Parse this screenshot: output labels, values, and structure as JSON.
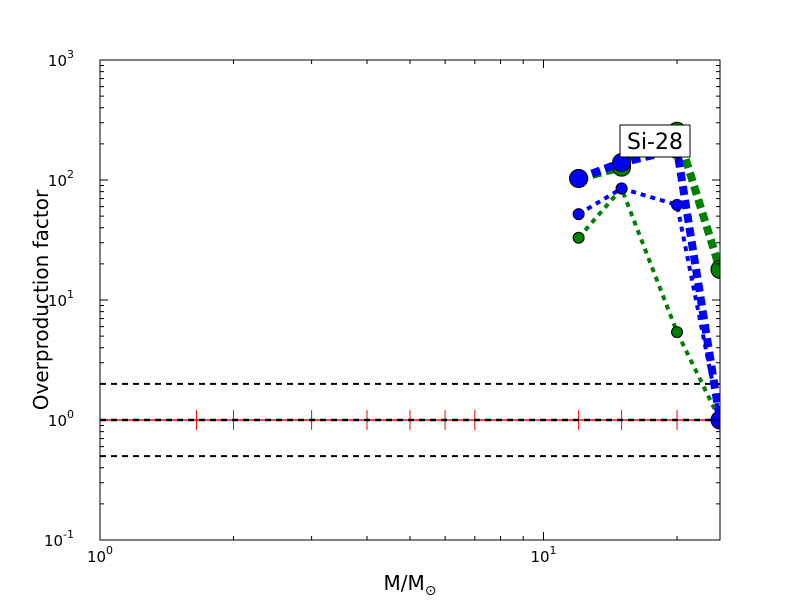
{
  "chart_data": {
    "type": "scatter",
    "title": "",
    "xlabel": "M/M",
    "xlabel_sub": "⊙",
    "ylabel": "Overproduction factor",
    "xscale": "log",
    "yscale": "log",
    "xlim": [
      1,
      25
    ],
    "ylim": [
      0.1,
      1000
    ],
    "x_ticks": [
      {
        "value": 1,
        "base": "10",
        "exp": "0"
      },
      {
        "value": 10,
        "base": "10",
        "exp": "1"
      }
    ],
    "y_ticks": [
      {
        "value": 0.1,
        "base": "10",
        "exp": "-1"
      },
      {
        "value": 1,
        "base": "10",
        "exp": "0"
      },
      {
        "value": 10,
        "base": "10",
        "exp": "1"
      },
      {
        "value": 100,
        "base": "10",
        "exp": "2"
      },
      {
        "value": 1000,
        "base": "10",
        "exp": "3"
      }
    ],
    "annotation": "Si-28",
    "reference_lines": [
      {
        "y": 2,
        "color": "#000000",
        "style": "dashed"
      },
      {
        "y": 1,
        "color": "#000000",
        "style": "dashed"
      },
      {
        "y": 0.5,
        "color": "#000000",
        "style": "dashed"
      }
    ],
    "marker_line": {
      "y": 1,
      "color": "#ff0000",
      "x": [
        1.65,
        2,
        3,
        4,
        5,
        6,
        7,
        12,
        15,
        20,
        25
      ]
    },
    "series": [
      {
        "color": "#008000",
        "size": "small",
        "x": [
          12,
          15,
          20,
          25
        ],
        "y": [
          33,
          85,
          5.4,
          1.0
        ]
      },
      {
        "color": "#0000ff",
        "size": "small",
        "x": [
          12,
          15,
          20,
          25
        ],
        "y": [
          52,
          85,
          62,
          1.0
        ]
      },
      {
        "color": "#008000",
        "size": "large",
        "x": [
          12,
          15,
          20,
          25
        ],
        "y": [
          103,
          128,
          255,
          18
        ]
      },
      {
        "color": "#0000ff",
        "size": "large",
        "x": [
          12,
          15,
          20,
          25
        ],
        "y": [
          103,
          140,
          180,
          1.0
        ]
      }
    ]
  }
}
